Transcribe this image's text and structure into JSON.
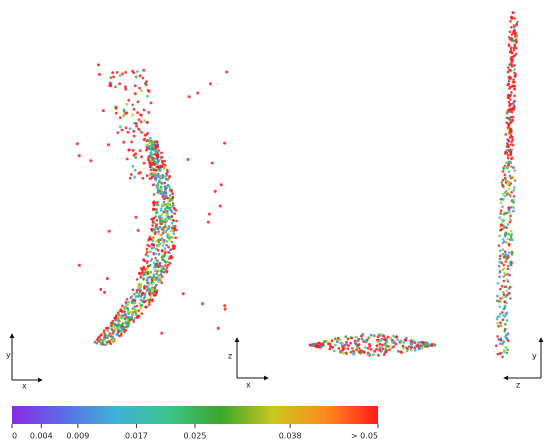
{
  "colorbar": {
    "range": [
      0,
      0.05
    ],
    "ticks": [
      0,
      0.004,
      0.009,
      0.017,
      0.025,
      0.038,
      {
        "value": 0.05,
        "label": "> 0.05"
      }
    ],
    "colors": [
      "#8a2be2",
      "#5a6ee8",
      "#3fb3d6",
      "#3cc48a",
      "#3aa62a",
      "#c8c81e",
      "#ff8a1e",
      "#ff1a1a"
    ]
  },
  "panels": [
    {
      "vertical_axis": "y",
      "horizontal_axis": "x"
    },
    {
      "vertical_axis": "z",
      "horizontal_axis": "x"
    },
    {
      "vertical_axis": "y",
      "horizontal_axis": "z"
    }
  ]
}
